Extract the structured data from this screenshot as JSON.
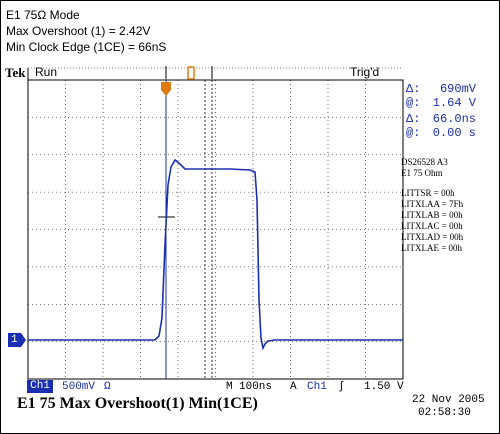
{
  "header": {
    "line1": "E1 75Ω Mode",
    "line2": "Max Overshoot (1) = 2.42V",
    "line3": "Min Clock Edge (1CE) = 66nS"
  },
  "scope": {
    "brand": "Tek",
    "state": "Run",
    "trigger_status": "Trig'd",
    "channel_marker": "1",
    "readouts": {
      "delta_symbol": "Δ:",
      "at_symbol": "@:",
      "v_delta": "690mV",
      "v_at": "1.64 V",
      "t_delta": "66.0ns",
      "t_at": "0.00 s"
    },
    "notes": [
      "DS26528  A3",
      "E1 75 Ohm",
      "",
      "LITTSR = 00h",
      "LITXLAA = 7Fh",
      "LITXLAB = 00h",
      "LITXLAC = 00h",
      "LITXLAD = 00h",
      "LITXLAE = 00h"
    ],
    "bottom": {
      "channel": "Ch1",
      "volts_div": "500mV",
      "impedance": "Ω",
      "timebase_label": "M",
      "timebase": "100ns",
      "mode": "A",
      "trig_channel": "Ch1",
      "trig_slope": "∫",
      "trig_level": "1.50 V"
    },
    "caption": "E1 75 Max Overshoot(1)  Min(1CE)",
    "date": "22 Nov 2005",
    "time": "02:58:30",
    "colors": {
      "trace": "#1a2fb0",
      "trigger_marker": "#e07a10",
      "grid": "#000000"
    }
  }
}
